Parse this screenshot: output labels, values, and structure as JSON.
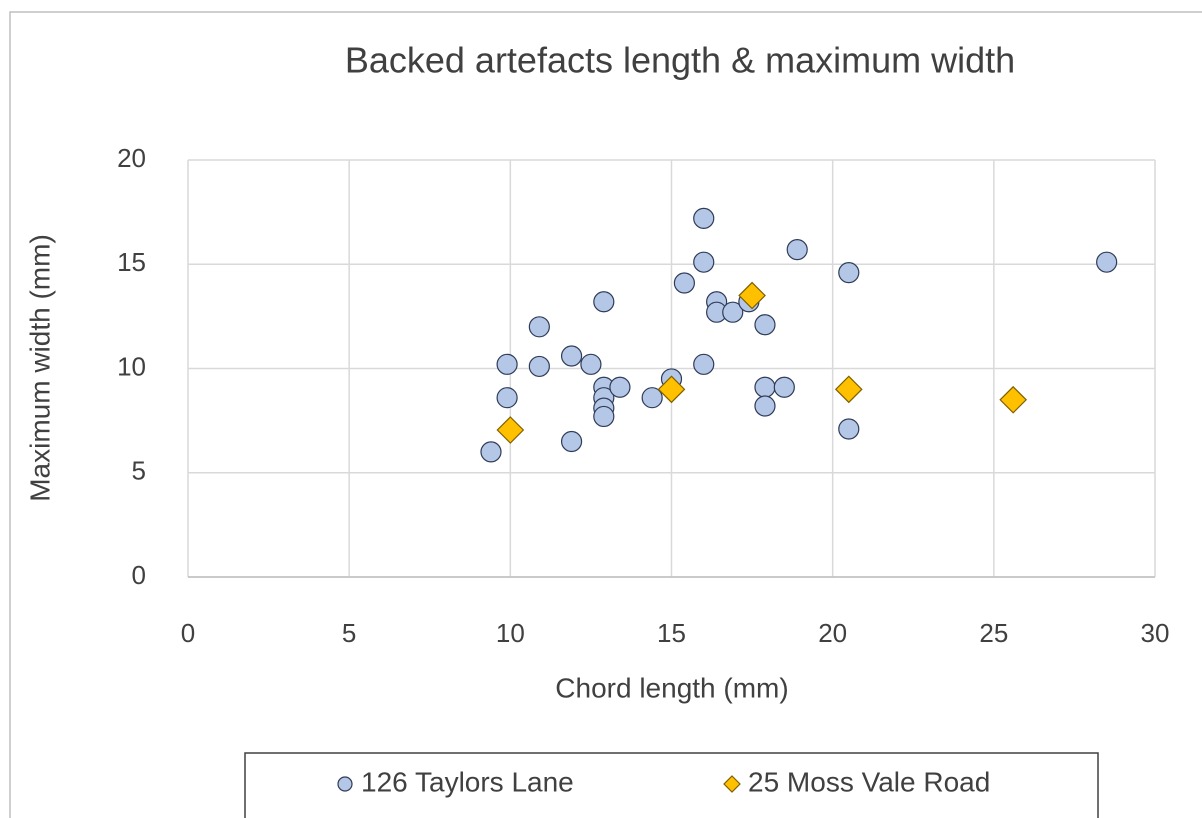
{
  "chart_data": {
    "type": "scatter",
    "title": "Backed artefacts length & maximum width",
    "x_label": "Chord length (mm)",
    "y_label": "Maximum width (mm)",
    "xlim": [
      0,
      30
    ],
    "xticks": [
      0,
      5,
      10,
      15,
      20,
      25,
      30
    ],
    "ylim": [
      0,
      20
    ],
    "yticks": [
      0,
      5,
      10,
      15,
      20
    ],
    "grid": true,
    "legend": "bottom",
    "series": [
      {
        "name": "126 Taylors Lane",
        "color": "#b4c7e7",
        "marker": "circle",
        "x": [
          9.4,
          9.9,
          9.9,
          10.9,
          10.9,
          11.9,
          11.9,
          12.5,
          12.9,
          12.9,
          12.9,
          12.9,
          12.9,
          13.4,
          14.4,
          15.0,
          15.4,
          16.0,
          16.0,
          16.0,
          16.4,
          16.4,
          16.9,
          17.4,
          17.9,
          17.9,
          17.9,
          18.5,
          18.9,
          20.5,
          20.5,
          28.5
        ],
        "values": [
          6.0,
          10.2,
          8.6,
          12.0,
          10.1,
          10.6,
          6.5,
          10.2,
          13.2,
          9.1,
          8.6,
          8.1,
          7.7,
          9.1,
          8.6,
          9.5,
          14.1,
          17.2,
          15.1,
          10.2,
          13.2,
          12.7,
          12.7,
          13.2,
          12.1,
          9.1,
          8.2,
          9.1,
          15.7,
          14.6,
          7.1,
          15.1
        ]
      },
      {
        "name": "25 Moss Vale Road",
        "color": "#ffc000",
        "marker": "diamond",
        "x": [
          10.0,
          15.0,
          17.5,
          20.5,
          25.6
        ],
        "values": [
          7.05,
          9.0,
          13.5,
          9.0,
          8.5
        ]
      }
    ]
  }
}
